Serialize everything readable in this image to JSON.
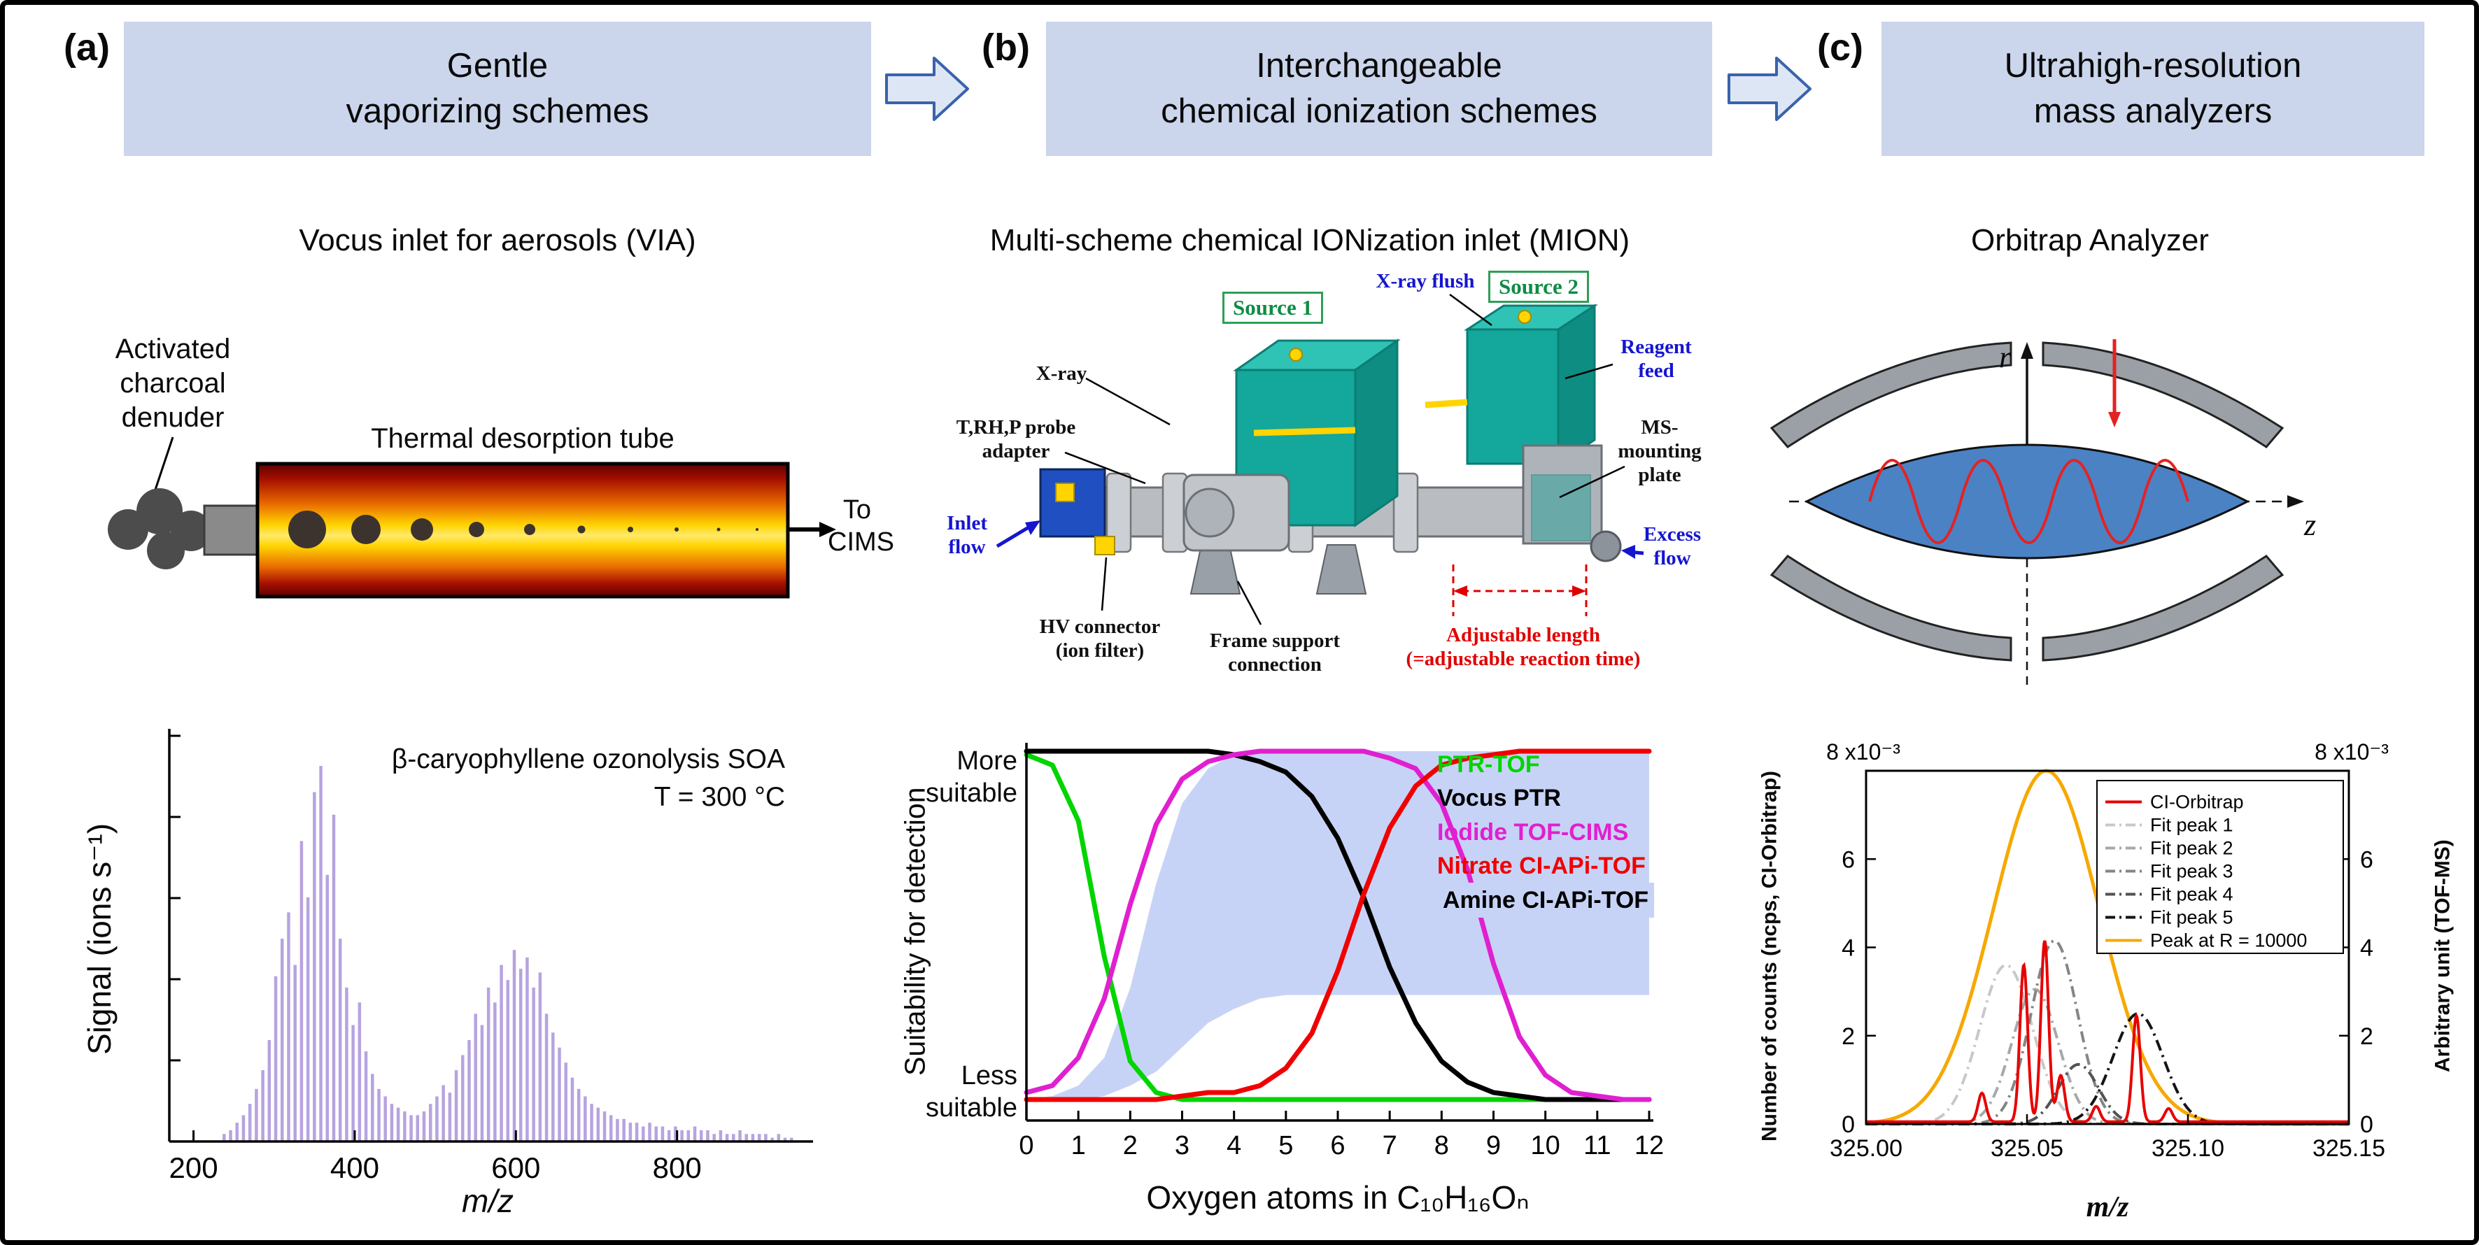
{
  "header": {
    "box_bg": "#cbd5eb",
    "arrow_fill": "#dde6f4",
    "arrow_stroke": "#3a62ad",
    "panels": [
      {
        "tag": "(a)",
        "title": "Gentle\nvaporizing schemes"
      },
      {
        "tag": "(b)",
        "title": "Interchangeable\nchemical ionization schemes"
      },
      {
        "tag": "(c)",
        "title": "Ultrahigh-resolution\nmass analyzers"
      }
    ]
  },
  "panel_a": {
    "subtitle": "Vocus inlet for aerosols (VIA)",
    "denuder_label": "Activated\ncharcoal\ndenuder",
    "tube_label": "Thermal desorption tube",
    "outlet_label": "To\nCIMS"
  },
  "panel_b": {
    "subtitle": "Multi-scheme chemical IONization inlet (MION)",
    "cad_labels": {
      "xray_flush": "X-ray flush",
      "source1": "Source 1",
      "source2": "Source 2",
      "xray": "X-ray",
      "reagent_feed": "Reagent\nfeed",
      "trhp": "T,RH,P probe\nadapter",
      "ms_plate": "MS-\nmounting\nplate",
      "inlet_flow": "Inlet\nflow",
      "excess_flow": "Excess\nflow",
      "hv": "HV connector\n(ion filter)",
      "frame": "Frame support\nconnection",
      "adjustable": "Adjustable length\n(=adjustable reaction time)"
    }
  },
  "panel_c": {
    "subtitle": "Orbitrap Analyzer",
    "axis_r": "r",
    "axis_z": "z"
  },
  "chart_data": [
    {
      "id": "via-spectrum",
      "type": "bar",
      "annotation_line1": "β-caryophyllene ozonolysis SOA",
      "annotation_line2": "T = 300 °C",
      "xlabel": "m/z",
      "ylabel": "Signal (ions s⁻¹)",
      "xlim": [
        170,
        960
      ],
      "ylim": [
        0,
        1.08
      ],
      "xticks": [
        200,
        400,
        600,
        800
      ],
      "color": "#b7a3e0",
      "sticks": [
        [
          238,
          0.02
        ],
        [
          246,
          0.03
        ],
        [
          254,
          0.05
        ],
        [
          262,
          0.07
        ],
        [
          270,
          0.1
        ],
        [
          278,
          0.14
        ],
        [
          286,
          0.19
        ],
        [
          294,
          0.27
        ],
        [
          302,
          0.44
        ],
        [
          310,
          0.54
        ],
        [
          318,
          0.61
        ],
        [
          326,
          0.47
        ],
        [
          334,
          0.8
        ],
        [
          342,
          0.65
        ],
        [
          350,
          0.93
        ],
        [
          358,
          1.0
        ],
        [
          366,
          0.71
        ],
        [
          374,
          0.87
        ],
        [
          382,
          0.54
        ],
        [
          390,
          0.41
        ],
        [
          398,
          0.31
        ],
        [
          406,
          0.37
        ],
        [
          414,
          0.24
        ],
        [
          422,
          0.18
        ],
        [
          430,
          0.14
        ],
        [
          438,
          0.12
        ],
        [
          446,
          0.1
        ],
        [
          454,
          0.09
        ],
        [
          462,
          0.08
        ],
        [
          470,
          0.07
        ],
        [
          478,
          0.07
        ],
        [
          486,
          0.08
        ],
        [
          494,
          0.1
        ],
        [
          502,
          0.12
        ],
        [
          510,
          0.15
        ],
        [
          518,
          0.13
        ],
        [
          526,
          0.19
        ],
        [
          534,
          0.23
        ],
        [
          542,
          0.27
        ],
        [
          550,
          0.34
        ],
        [
          558,
          0.31
        ],
        [
          566,
          0.41
        ],
        [
          574,
          0.37
        ],
        [
          582,
          0.47
        ],
        [
          590,
          0.43
        ],
        [
          598,
          0.51
        ],
        [
          606,
          0.46
        ],
        [
          614,
          0.49
        ],
        [
          622,
          0.41
        ],
        [
          630,
          0.45
        ],
        [
          638,
          0.34
        ],
        [
          646,
          0.29
        ],
        [
          654,
          0.25
        ],
        [
          662,
          0.21
        ],
        [
          670,
          0.17
        ],
        [
          678,
          0.14
        ],
        [
          686,
          0.12
        ],
        [
          694,
          0.1
        ],
        [
          702,
          0.09
        ],
        [
          710,
          0.08
        ],
        [
          718,
          0.07
        ],
        [
          726,
          0.06
        ],
        [
          734,
          0.06
        ],
        [
          742,
          0.05
        ],
        [
          750,
          0.05
        ],
        [
          758,
          0.04
        ],
        [
          766,
          0.05
        ],
        [
          774,
          0.04
        ],
        [
          782,
          0.04
        ],
        [
          790,
          0.03
        ],
        [
          798,
          0.04
        ],
        [
          806,
          0.03
        ],
        [
          814,
          0.03
        ],
        [
          822,
          0.04
        ],
        [
          830,
          0.03
        ],
        [
          838,
          0.03
        ],
        [
          846,
          0.02
        ],
        [
          854,
          0.03
        ],
        [
          862,
          0.02
        ],
        [
          870,
          0.02
        ],
        [
          878,
          0.03
        ],
        [
          886,
          0.02
        ],
        [
          894,
          0.02
        ],
        [
          902,
          0.02
        ],
        [
          910,
          0.02
        ],
        [
          918,
          0.01
        ],
        [
          926,
          0.02
        ],
        [
          934,
          0.01
        ],
        [
          942,
          0.01
        ]
      ]
    },
    {
      "id": "mion-suitability",
      "type": "line",
      "ylabel": "Suitability for detection",
      "more_label": "More\nsuitable",
      "less_label": "Less\nsuitable",
      "xlabel": "Oxygen atoms in C₁₀H₁₆Oₙ",
      "xticks": [
        0,
        1,
        2,
        3,
        4,
        5,
        6,
        7,
        8,
        9,
        10,
        11,
        12
      ],
      "x_start": 0,
      "x_step": 0.5,
      "band": {
        "name": "Amine CI-APi-TOF",
        "color": "#c7d3f6",
        "upper": [
          0,
          0.01,
          0.04,
          0.12,
          0.32,
          0.62,
          0.85,
          0.95,
          0.99,
          1,
          1,
          1,
          1,
          1,
          1,
          1,
          1,
          1,
          1,
          1,
          1,
          1,
          1,
          1,
          1
        ],
        "lower": [
          0,
          0,
          0,
          0.01,
          0.04,
          0.08,
          0.15,
          0.22,
          0.26,
          0.29,
          0.3,
          0.3,
          0.3,
          0.3,
          0.3,
          0.3,
          0.3,
          0.3,
          0.3,
          0.3,
          0.3,
          0.3,
          0.3,
          0.3,
          0.3
        ]
      },
      "series": [
        {
          "name": "PTR-TOF",
          "color": "#00d500",
          "values": [
            0.99,
            0.96,
            0.8,
            0.41,
            0.11,
            0.02,
            0,
            0,
            0,
            0,
            0,
            0,
            0,
            0,
            0,
            0,
            0,
            0,
            0,
            0,
            0,
            0,
            0,
            0,
            0
          ]
        },
        {
          "name": "Vocus PTR",
          "color": "#000000",
          "values": [
            1,
            1,
            1,
            1,
            1,
            1,
            1,
            1,
            0.99,
            0.97,
            0.94,
            0.87,
            0.75,
            0.58,
            0.38,
            0.22,
            0.11,
            0.05,
            0.02,
            0.01,
            0,
            0,
            0,
            0,
            0
          ]
        },
        {
          "name": "Iodide TOF-CIMS",
          "color": "#e020d0",
          "values": [
            0.02,
            0.04,
            0.12,
            0.29,
            0.56,
            0.79,
            0.92,
            0.97,
            0.99,
            1,
            1,
            1,
            1,
            1,
            0.98,
            0.95,
            0.85,
            0.66,
            0.39,
            0.18,
            0.07,
            0.02,
            0.01,
            0,
            0
          ]
        },
        {
          "name": "Nitrate CI-APi-TOF",
          "color": "#f00000",
          "values": [
            0,
            0,
            0,
            0,
            0,
            0,
            0.01,
            0.02,
            0.02,
            0.04,
            0.09,
            0.19,
            0.37,
            0.59,
            0.78,
            0.9,
            0.96,
            0.98,
            0.99,
            1,
            1,
            1,
            1,
            1,
            1
          ]
        }
      ],
      "legend": [
        {
          "label": "PTR-TOF",
          "color": "#00d500"
        },
        {
          "label": "Vocus PTR",
          "color": "#000000"
        },
        {
          "label": "Iodide TOF-CIMS",
          "color": "#e020d0"
        },
        {
          "label": "Nitrate CI-APi-TOF",
          "color": "#f00000"
        },
        {
          "label": "Amine CI-APi-TOF",
          "color": "#000000",
          "bg": "#c7d3f6"
        }
      ]
    },
    {
      "id": "orbitrap-spectrum",
      "type": "line",
      "xlim": [
        325.0,
        325.15
      ],
      "ylim": [
        0,
        8
      ],
      "xticks": [
        325.0,
        325.05,
        325.1,
        325.15
      ],
      "yticks": [
        0,
        2,
        4,
        6,
        8
      ],
      "top_left_label": "8 x10⁻³",
      "top_right_label": "8 x10⁻³",
      "ylabel_left": "Number of counts (ncps, CI-Orbitrap)",
      "ylabel_right": "Arbitrary unit (TOF-MS)",
      "xlabel": "m/z",
      "reference_peak": {
        "label": "Peak at R = 10000",
        "center": 325.056,
        "sigma": 0.0165,
        "amp": 8,
        "color": "#f7a800"
      },
      "fit_peaks": [
        {
          "label": "Fit peak 1",
          "center": 325.0435,
          "sigma": 0.0082,
          "amp": 3.6,
          "color": "#c8c8c8"
        },
        {
          "label": "Fit peak 2",
          "center": 325.0525,
          "sigma": 0.0072,
          "amp": 3.05,
          "color": "#a8a8a8"
        },
        {
          "label": "Fit peak 3",
          "center": 325.0585,
          "sigma": 0.0072,
          "amp": 4.15,
          "color": "#858585"
        },
        {
          "label": "Fit peak 4",
          "center": 325.066,
          "sigma": 0.0062,
          "amp": 1.35,
          "color": "#525252"
        },
        {
          "label": "Fit peak 5",
          "center": 325.0845,
          "sigma": 0.0078,
          "amp": 2.5,
          "color": "#141414"
        }
      ],
      "spectrum": {
        "label": "CI-Orbitrap",
        "color": "#e80000",
        "sigma": 0.0012,
        "baseline": 0.05,
        "peaks": [
          [
            325.036,
            0.65
          ],
          [
            325.049,
            3.55
          ],
          [
            325.0555,
            4.1
          ],
          [
            325.0605,
            1.05
          ],
          [
            325.0715,
            0.35
          ],
          [
            325.084,
            2.4
          ],
          [
            325.094,
            0.3
          ]
        ]
      },
      "legend": [
        {
          "label": "CI-Orbitrap",
          "color": "#e80000",
          "style": "solid"
        },
        {
          "label": "Fit peak 1",
          "color": "#c8c8c8",
          "style": "dashdot"
        },
        {
          "label": "Fit peak 2",
          "color": "#a8a8a8",
          "style": "dashdot"
        },
        {
          "label": "Fit peak 3",
          "color": "#858585",
          "style": "dashdot"
        },
        {
          "label": "Fit peak 4",
          "color": "#525252",
          "style": "dashdot"
        },
        {
          "label": "Fit peak 5",
          "color": "#141414",
          "style": "dashdot"
        },
        {
          "label": "Peak at R = 10000",
          "color": "#f7a800",
          "style": "solid"
        }
      ]
    }
  ]
}
